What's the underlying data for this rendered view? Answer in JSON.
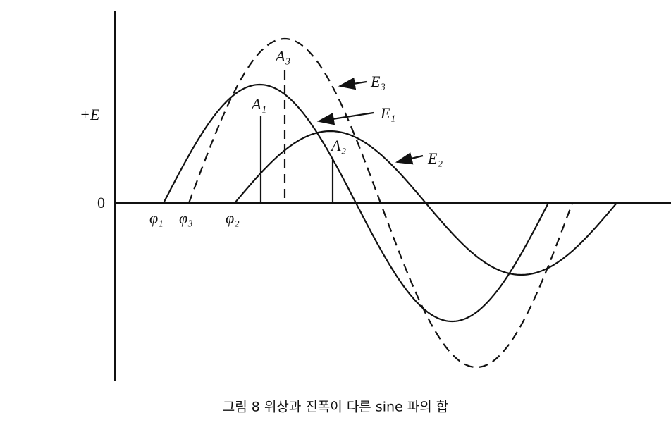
{
  "axis": {
    "top_label": "+E",
    "origin_label": "0"
  },
  "phases": [
    "φ₁",
    "φ₃",
    "φ₂"
  ],
  "peaks": [
    "A₁",
    "A₂",
    "A₃"
  ],
  "waves": [
    "E₁",
    "E₂",
    "E₃"
  ],
  "caption": "그림 8   위상과 진폭이 다른 sine 파의 합"
}
